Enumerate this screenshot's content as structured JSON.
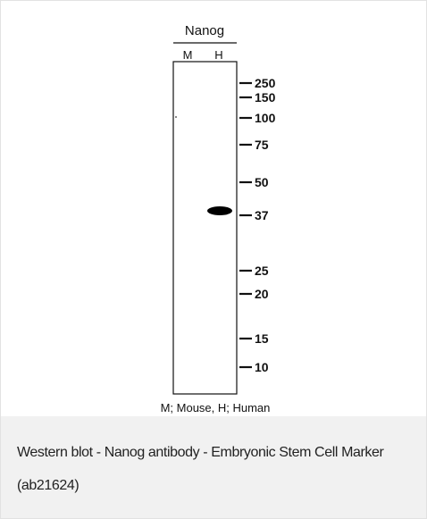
{
  "figure": {
    "antibody": "Nanog",
    "lanes": [
      "M",
      "H"
    ],
    "markers": [
      "250",
      "150",
      "100",
      "75",
      "50",
      "37",
      "25",
      "20",
      "15",
      "10"
    ],
    "legend": "M; Mouse, H; Human"
  },
  "caption": "Western blot - Nanog antibody - Embryonic Stem Cell Marker (ab21624)"
}
